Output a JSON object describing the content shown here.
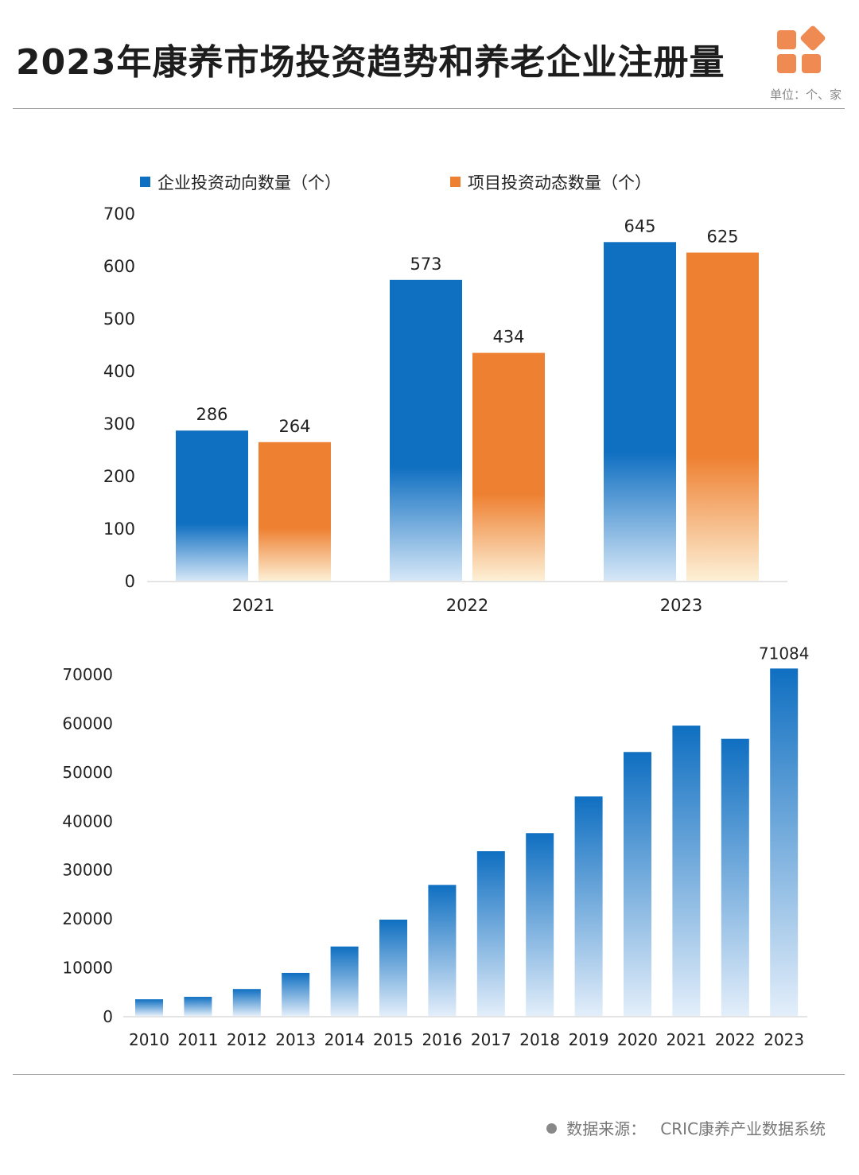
{
  "header": {
    "title": "2023年康养市场投资趋势和养老企业注册量",
    "unit": "单位：个、家"
  },
  "footer": {
    "source_label": "数据来源：",
    "source_value": "CRIC康养产业数据系统"
  },
  "colors": {
    "blue": "#0f6fc1",
    "orange": "#ee8031",
    "logo": "#ef8a52"
  },
  "chart_data": [
    {
      "type": "bar",
      "categories": [
        "2021",
        "2022",
        "2023"
      ],
      "series": [
        {
          "name": "企业投资动向数量（个）",
          "values": [
            286,
            573,
            645
          ]
        },
        {
          "name": "项目投资动态数量（个）",
          "values": [
            264,
            434,
            625
          ]
        }
      ],
      "ylim": [
        0,
        700
      ],
      "yticks": [
        "0",
        "100",
        "200",
        "300",
        "400",
        "500",
        "600",
        "700"
      ],
      "legend_position": "top",
      "grid": false
    },
    {
      "type": "bar",
      "categories": [
        "2010",
        "2011",
        "2012",
        "2013",
        "2014",
        "2015",
        "2016",
        "2017",
        "2018",
        "2019",
        "2020",
        "2021",
        "2022",
        "2023"
      ],
      "values": [
        3400,
        3900,
        5500,
        8800,
        14200,
        19700,
        26800,
        33700,
        37400,
        44900,
        54000,
        59400,
        56700,
        71084
      ],
      "labeled_value": "71084",
      "ylim": [
        0,
        70000
      ],
      "yticks": [
        "0",
        "10000",
        "20000",
        "30000",
        "40000",
        "50000",
        "60000",
        "70000"
      ],
      "grid": false
    }
  ]
}
